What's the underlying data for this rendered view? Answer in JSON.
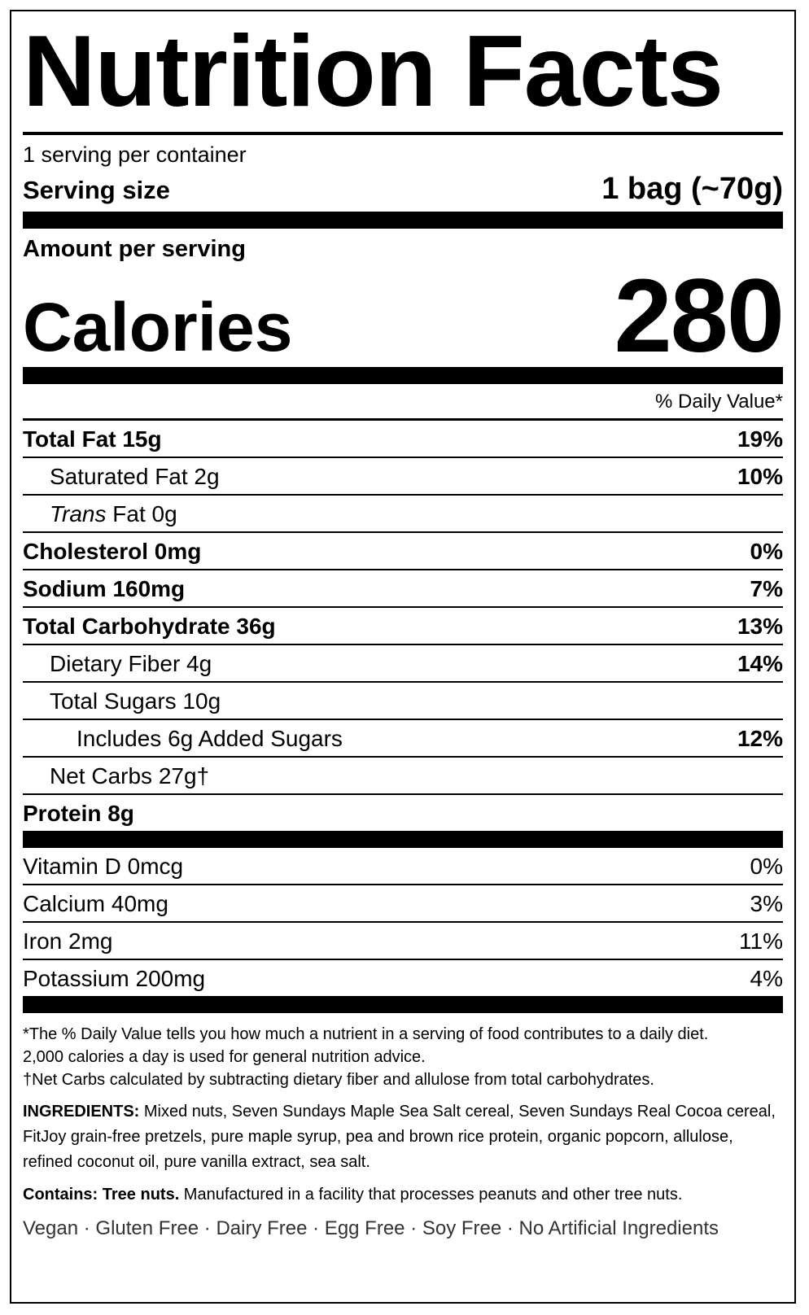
{
  "title": "Nutrition Facts",
  "servings_per_container": "1 serving per container",
  "serving_size": {
    "label": "Serving size",
    "value": "1 bag (~70g)"
  },
  "amount_per_serving": "Amount per serving",
  "calories": {
    "label": "Calories",
    "value": "280"
  },
  "daily_value_header": "% Daily Value*",
  "nutrients": [
    {
      "name": "Total Fat 15g",
      "dv": "19%",
      "bold": true,
      "indent": 0
    },
    {
      "name": "Saturated Fat 2g",
      "dv": "10%",
      "bold": false,
      "indent": 1
    },
    {
      "name_italic": "Trans",
      "name": " Fat 0g",
      "bold": false,
      "indent": 1
    },
    {
      "name": "Cholesterol 0mg",
      "dv": "0%",
      "bold": true,
      "indent": 0
    },
    {
      "name": "Sodium 160mg",
      "dv": "7%",
      "bold": true,
      "indent": 0
    },
    {
      "name": "Total Carbohydrate 36g",
      "dv": "13%",
      "bold": true,
      "indent": 0
    },
    {
      "name": "Dietary Fiber 4g",
      "dv": "14%",
      "bold": false,
      "indent": 1
    },
    {
      "name": "Total Sugars 10g",
      "bold": false,
      "indent": 1
    },
    {
      "name": "Includes 6g Added Sugars",
      "dv": "12%",
      "bold": false,
      "indent": 2
    },
    {
      "name": "Net Carbs 27g†",
      "bold": false,
      "indent": 1
    },
    {
      "name": "Protein 8g",
      "bold": true,
      "indent": 0
    }
  ],
  "vitamins": [
    {
      "name": "Vitamin D 0mcg",
      "dv": "0%"
    },
    {
      "name": "Calcium 40mg",
      "dv": "3%"
    },
    {
      "name": "Iron 2mg",
      "dv": "11%"
    },
    {
      "name": "Potassium 200mg",
      "dv": "4%"
    }
  ],
  "footnotes": [
    "*The % Daily Value tells you how much a nutrient in a serving of food contributes to a daily diet.",
    "2,000 calories a day is used for general nutrition advice.",
    "†Net Carbs calculated by subtracting dietary fiber and allulose from total carbohydrates."
  ],
  "ingredients": {
    "label": "INGREDIENTS:",
    "text": " Mixed nuts, Seven Sundays Maple Sea Salt cereal, Seven Sundays Real Cocoa cereal, FitJoy grain-free pretzels, pure maple syrup, pea and brown rice protein, organic popcorn, allulose, refined coconut oil, pure vanilla extract, sea salt."
  },
  "contains": {
    "label": "Contains: Tree nuts.",
    "text": " Manufactured in a facility that processes peanuts and other tree nuts."
  },
  "claims": "Vegan · Gluten Free · Dairy Free · Egg Free · Soy Free · No Artificial Ingredients"
}
